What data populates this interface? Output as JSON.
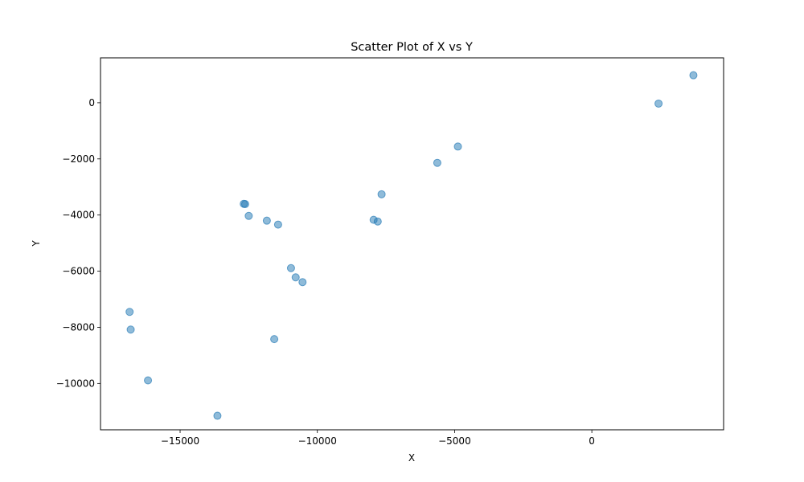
{
  "chart_data": {
    "type": "scatter",
    "title": "Scatter Plot of X vs Y",
    "xlabel": "X",
    "ylabel": "Y",
    "xlim": [
      -17900,
      4800
    ],
    "ylim": [
      -11650,
      1600
    ],
    "xticks": [
      -15000,
      -10000,
      -5000,
      0
    ],
    "xtick_labels": [
      "−15000",
      "−10000",
      "−5000",
      "0"
    ],
    "yticks": [
      -10000,
      -8000,
      -6000,
      -4000,
      -2000,
      0
    ],
    "ytick_labels": [
      "−10000",
      "−8000",
      "−6000",
      "−4000",
      "−2000",
      "0"
    ],
    "grid": false,
    "point_color": "#1f77b4",
    "point_alpha": 0.5,
    "points": [
      {
        "x": 3700,
        "y": 980
      },
      {
        "x": 2430,
        "y": -30
      },
      {
        "x": -4880,
        "y": -1560
      },
      {
        "x": -5630,
        "y": -2140
      },
      {
        "x": -7660,
        "y": -3260
      },
      {
        "x": -12680,
        "y": -3600
      },
      {
        "x": -12630,
        "y": -3610
      },
      {
        "x": -12500,
        "y": -4030
      },
      {
        "x": -11840,
        "y": -4200
      },
      {
        "x": -11430,
        "y": -4340
      },
      {
        "x": -7950,
        "y": -4170
      },
      {
        "x": -7800,
        "y": -4230
      },
      {
        "x": -10960,
        "y": -5890
      },
      {
        "x": -10790,
        "y": -6220
      },
      {
        "x": -10540,
        "y": -6390
      },
      {
        "x": -16840,
        "y": -7450
      },
      {
        "x": -16800,
        "y": -8080
      },
      {
        "x": -11570,
        "y": -8420
      },
      {
        "x": -16170,
        "y": -9890
      },
      {
        "x": -13640,
        "y": -11150
      }
    ]
  }
}
